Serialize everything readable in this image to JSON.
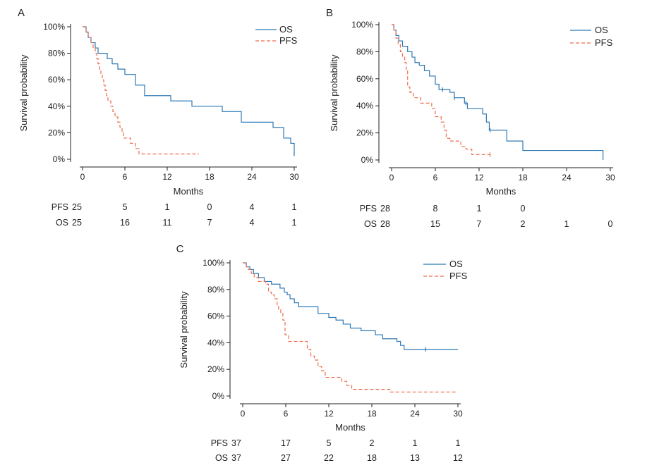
{
  "colors": {
    "OS": "#2e79b5",
    "PFS": "#ee6c4d",
    "axis": "#222222"
  },
  "chart_data": [
    {
      "panel": "A",
      "type": "line",
      "xlabel": "Months",
      "ylabel": "Survival probability",
      "xlim": [
        0,
        30
      ],
      "ylim": [
        0,
        100
      ],
      "x_ticks": [
        "0",
        "6",
        "12",
        "18",
        "24",
        "30"
      ],
      "y_ticks": [
        "0%",
        "20%",
        "40%",
        "60%",
        "80%",
        "100%"
      ],
      "legend": "top-right",
      "grid": false,
      "series": [
        {
          "name": "OS",
          "style": "solid",
          "x": [
            0,
            0.5,
            0.8,
            1.2,
            1.8,
            2.2,
            3.5,
            4.2,
            5.0,
            6.0,
            7.5,
            8.8,
            12.5,
            15.5,
            19.8,
            22.5,
            27.0,
            28.5,
            29.5
          ],
          "y": [
            100,
            96,
            92,
            88,
            84,
            80,
            76,
            72,
            68,
            64,
            56,
            48,
            44,
            40,
            36,
            28,
            24,
            16,
            12
          ],
          "end_x": 30.0,
          "end_y": 4,
          "censored_x": [
            30.0
          ]
        },
        {
          "name": "PFS",
          "style": "dashed",
          "x": [
            0,
            0.5,
            0.8,
            1.2,
            1.5,
            1.8,
            2.0,
            2.2,
            2.4,
            2.6,
            2.8,
            3.0,
            3.2,
            3.4,
            3.6,
            4.0,
            4.3,
            4.6,
            5.0,
            5.3,
            5.6,
            5.8,
            6.8,
            7.5,
            8.0,
            9.0,
            13.0,
            15.0
          ],
          "y": [
            100,
            96,
            92,
            88,
            84,
            80,
            76,
            72,
            68,
            64,
            60,
            56,
            52,
            48,
            44,
            40,
            36,
            32,
            28,
            24,
            20,
            16,
            12,
            8,
            4,
            4,
            4,
            4
          ],
          "end_x": 16.5,
          "end_y": 4,
          "censored_x": []
        }
      ],
      "risk_table": {
        "PFS": [
          "25",
          "5",
          "1",
          "0",
          "4",
          "1"
        ],
        "OS": [
          "25",
          "16",
          "11",
          "7",
          "4",
          "1"
        ]
      }
    },
    {
      "panel": "B",
      "type": "line",
      "xlabel": "Months",
      "ylabel": "Survival probability",
      "xlim": [
        0,
        30
      ],
      "ylim": [
        0,
        100
      ],
      "x_ticks": [
        "0",
        "6",
        "12",
        "18",
        "24",
        "30"
      ],
      "y_ticks": [
        "0%",
        "20%",
        "40%",
        "60%",
        "80%",
        "100%"
      ],
      "legend": "top-right",
      "grid": false,
      "series": [
        {
          "name": "OS",
          "style": "solid",
          "x": [
            0,
            0.3,
            0.6,
            1.0,
            1.5,
            2.2,
            2.8,
            3.2,
            3.8,
            4.5,
            5.2,
            6.0,
            6.5,
            8.0,
            8.6,
            10.0,
            10.4,
            12.5,
            13.0,
            13.4,
            13.8,
            15.8,
            18.0,
            29.0
          ],
          "y": [
            100,
            96,
            92,
            88,
            84,
            80,
            76,
            72,
            70,
            66,
            62,
            56,
            52,
            50,
            46,
            42,
            38,
            34,
            28,
            22,
            22,
            14,
            7,
            7
          ],
          "end_x": 29.0,
          "end_y": 0,
          "censored_x": [
            7.0,
            8.6,
            10.2,
            13.5
          ]
        },
        {
          "name": "PFS",
          "style": "dashed",
          "x": [
            0,
            0.3,
            0.6,
            0.9,
            1.2,
            1.5,
            1.8,
            2.0,
            2.2,
            2.5,
            3.0,
            4.0,
            5.5,
            6.0,
            6.8,
            7.2,
            7.5,
            8.0,
            9.5,
            10.2,
            11.0
          ],
          "y": [
            100,
            96,
            90,
            86,
            80,
            76,
            72,
            66,
            54,
            50,
            46,
            42,
            38,
            32,
            28,
            22,
            16,
            14,
            10,
            8,
            4
          ],
          "end_x": 13.5,
          "end_y": 4,
          "censored_x": [
            13.5
          ]
        }
      ],
      "risk_table": {
        "PFS": [
          "28",
          "8",
          "1",
          "0",
          "",
          ""
        ],
        "OS": [
          "28",
          "15",
          "7",
          "2",
          "1",
          "0"
        ]
      }
    },
    {
      "panel": "C",
      "type": "line",
      "xlabel": "Months",
      "ylabel": "Survival probability",
      "xlim": [
        0,
        30
      ],
      "ylim": [
        0,
        100
      ],
      "x_ticks": [
        "0",
        "6",
        "12",
        "18",
        "24",
        "30"
      ],
      "y_ticks": [
        "0%",
        "20%",
        "40%",
        "60%",
        "80%",
        "100%"
      ],
      "legend": "top-right",
      "grid": false,
      "series": [
        {
          "name": "OS",
          "style": "solid",
          "x": [
            0,
            0.5,
            1.0,
            1.5,
            2.2,
            3.0,
            4.0,
            5.2,
            5.8,
            6.2,
            6.6,
            7.2,
            7.8,
            10.5,
            12.0,
            13.0,
            14.0,
            15.0,
            16.5,
            18.5,
            19.5,
            21.5,
            22.0,
            22.5,
            23.0
          ],
          "y": [
            100,
            97,
            95,
            92,
            89,
            86,
            84,
            81,
            78,
            76,
            73,
            70,
            67,
            62,
            59,
            57,
            54,
            51,
            49,
            46,
            43,
            41,
            38,
            35,
            35
          ],
          "end_x": 30.0,
          "end_y": 35,
          "censored_x": [
            25.5
          ]
        },
        {
          "name": "PFS",
          "style": "dashed",
          "x": [
            0,
            0.5,
            0.8,
            1.2,
            1.6,
            2.2,
            3.2,
            3.6,
            4.0,
            4.4,
            4.8,
            5.0,
            5.3,
            5.6,
            5.9,
            6.4,
            9.0,
            9.5,
            10.0,
            10.5,
            11.0,
            11.5,
            13.8,
            14.5,
            15.2,
            20.5
          ],
          "y": [
            100,
            97,
            95,
            92,
            89,
            86,
            84,
            78,
            76,
            73,
            68,
            65,
            62,
            57,
            46,
            41,
            35,
            30,
            27,
            22,
            19,
            14,
            11,
            8,
            5,
            3
          ],
          "end_x": 30.0,
          "end_y": 3,
          "censored_x": []
        }
      ],
      "risk_table": {
        "PFS": [
          "37",
          "17",
          "5",
          "2",
          "1",
          "1"
        ],
        "OS": [
          "37",
          "27",
          "22",
          "18",
          "13",
          "12"
        ]
      }
    }
  ]
}
